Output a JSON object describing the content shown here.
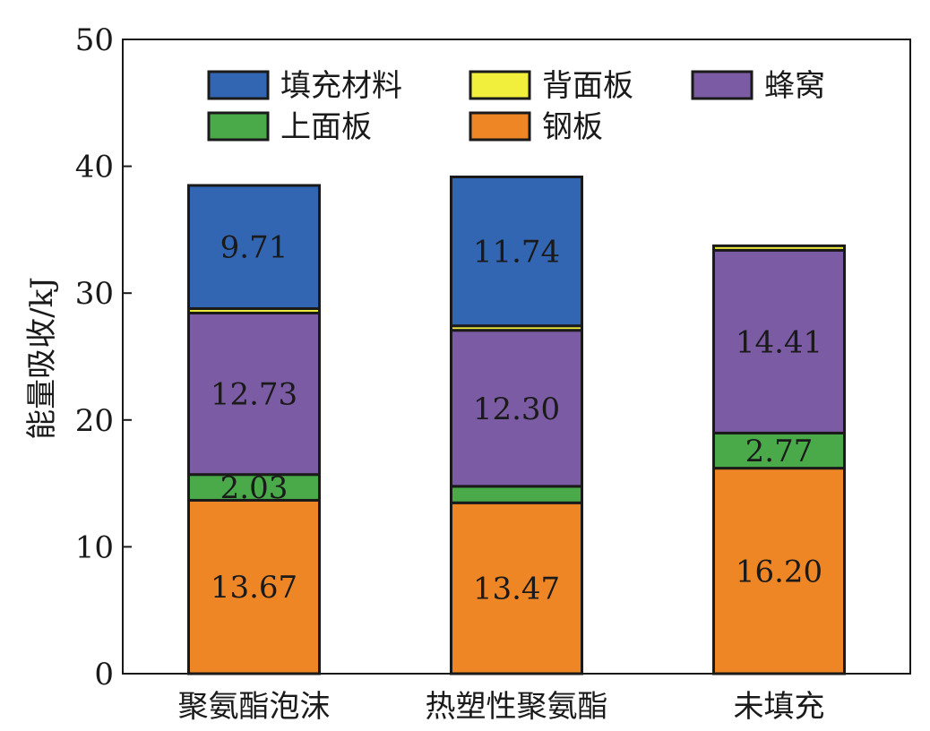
{
  "chart_data": {
    "type": "bar",
    "stacked": true,
    "categories": [
      "聚氨酯泡沫",
      "热塑性聚氨酯",
      "未填充"
    ],
    "ylabel": "能量吸收/kJ",
    "xlabel": "",
    "ylim": [
      0,
      50
    ],
    "yticks": [
      0,
      10,
      20,
      30,
      40,
      50
    ],
    "legend_placement": "top",
    "series": [
      {
        "name": "钢板",
        "color": "#ee8626",
        "values": [
          13.67,
          13.47,
          16.2
        ],
        "labels": [
          "13.67",
          "13.47",
          "16.20"
        ]
      },
      {
        "name": "上面板",
        "color": "#4aaa4a",
        "values": [
          2.03,
          1.3,
          2.77
        ],
        "labels": [
          "2.03",
          "",
          "2.77"
        ]
      },
      {
        "name": "蜂窝",
        "color": "#7b5ba3",
        "values": [
          12.73,
          12.3,
          14.41
        ],
        "labels": [
          "12.73",
          "12.30",
          "14.41"
        ]
      },
      {
        "name": "背面板",
        "color": "#f2ee3c",
        "values": [
          0.35,
          0.35,
          0.35
        ],
        "labels": [
          "",
          "",
          ""
        ]
      },
      {
        "name": "填充材料",
        "color": "#3366b2",
        "values": [
          9.71,
          11.74,
          0
        ],
        "labels": [
          "9.71",
          "11.74",
          ""
        ]
      }
    ],
    "legend_order": [
      "填充材料",
      "背面板",
      "蜂窝",
      "上面板",
      "钢板"
    ]
  }
}
